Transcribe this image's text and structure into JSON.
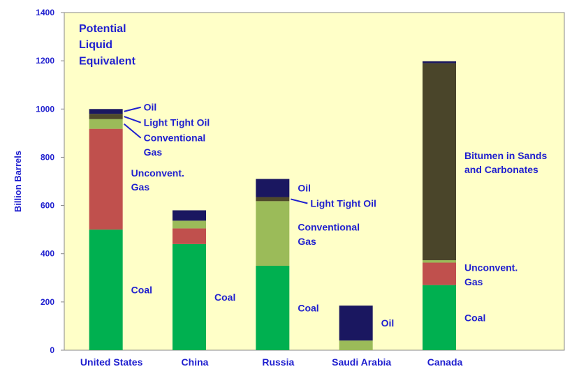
{
  "chart_data": {
    "type": "stacked_bar",
    "title": "Potential\nLiquid\nEquivalent",
    "y_label": "Billion Barrels",
    "categories": [
      "United States",
      "China",
      "Russia",
      "Saudi Arabia",
      "Canada"
    ],
    "ylim": [
      0,
      1400
    ],
    "yticks": [
      0,
      200,
      400,
      600,
      800,
      1000,
      1200,
      1400
    ],
    "series": [
      {
        "name": "Coal",
        "color": "#00b050",
        "values": [
          500,
          440,
          350,
          0,
          270
        ],
        "labels": [
          "Coal",
          "Coal",
          "Coal",
          null,
          "Coal"
        ]
      },
      {
        "name": "Unconvent. Gas",
        "color": "#c0504d",
        "values": [
          418,
          65,
          0,
          0,
          93
        ],
        "labels": [
          "Unconvent.\nGas",
          null,
          null,
          null,
          "Unconvent.\nGas"
        ]
      },
      {
        "name": "Conventional Gas",
        "color": "#9bbb59",
        "values": [
          40,
          32,
          268,
          40,
          10
        ],
        "labels": [
          "Conventional\nGas",
          null,
          "Conventional\nGas",
          null,
          null
        ]
      },
      {
        "name": "Light Tight Oil",
        "color": "#4f4a2a",
        "values": [
          22,
          0,
          17,
          0,
          0
        ],
        "labels": [
          "Light Tight Oil",
          null,
          "Light Tight Oil",
          null,
          null
        ]
      },
      {
        "name": "Bitumen in Sands and Carbonates",
        "color": "#4a452a",
        "values": [
          0,
          0,
          0,
          0,
          817
        ],
        "labels": [
          null,
          null,
          null,
          null,
          "Bitumen in Sands\nand Carbonates"
        ]
      },
      {
        "name": "Oil",
        "color": "#1a1760",
        "values": [
          20,
          43,
          75,
          145,
          8
        ],
        "labels": [
          "Oil",
          null,
          "Oil",
          "Oil",
          null
        ]
      }
    ]
  }
}
